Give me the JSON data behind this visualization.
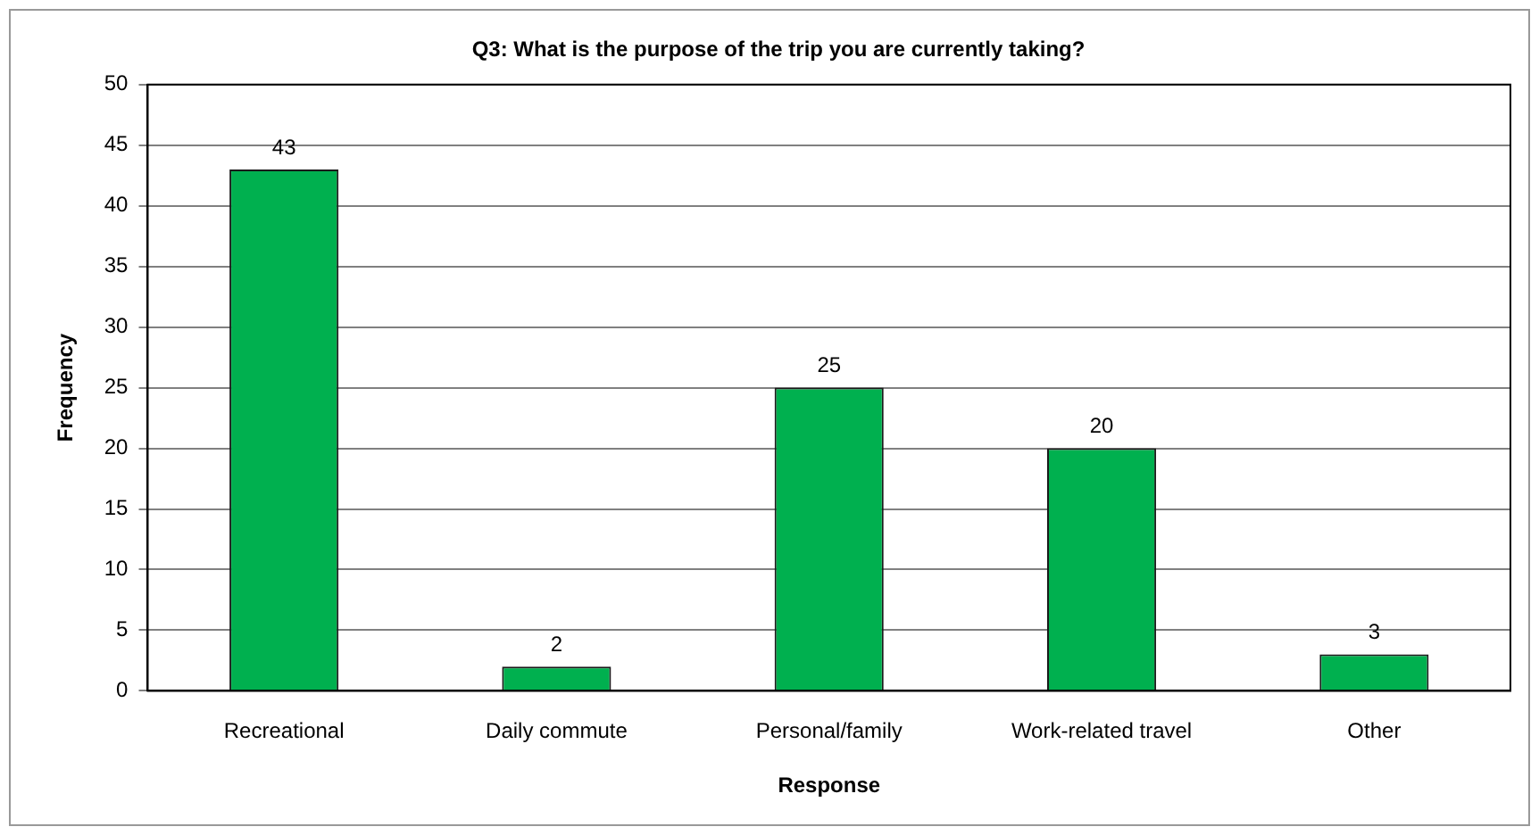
{
  "chart_data": {
    "type": "bar",
    "title": "Q3: What is the purpose of the trip you are currently taking?",
    "xlabel": "Response",
    "ylabel": "Frequency",
    "categories": [
      "Recreational",
      "Daily commute",
      "Personal/family",
      "Work-related travel",
      "Other"
    ],
    "values": [
      43,
      2,
      25,
      20,
      3
    ],
    "color": "#00b04f",
    "ylim": [
      0,
      50
    ],
    "yticks": [
      0,
      5,
      10,
      15,
      20,
      25,
      30,
      35,
      40,
      45,
      50
    ],
    "grid": "y",
    "data_labels": true,
    "legend": false
  }
}
